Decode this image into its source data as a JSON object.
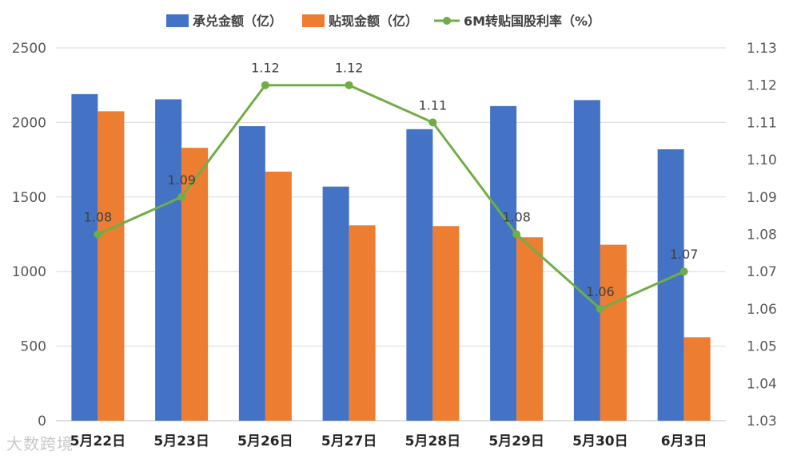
{
  "chart_data": {
    "type": "bar",
    "categories": [
      "5月22日",
      "5月23日",
      "5月26日",
      "5月27日",
      "5月28日",
      "5月29日",
      "5月30日",
      "6月3日"
    ],
    "series": [
      {
        "name": "承兑金额（亿）",
        "kind": "bar",
        "axis": "left",
        "color": "#4472c4",
        "values": [
          2190,
          2155,
          1975,
          1570,
          1955,
          2110,
          2150,
          1820
        ]
      },
      {
        "name": "贴现金额（亿）",
        "kind": "bar",
        "axis": "left",
        "color": "#ed7d31",
        "values": [
          2075,
          1830,
          1670,
          1310,
          1305,
          1230,
          1180,
          560
        ]
      },
      {
        "name": "6M转贴国股利率（%）",
        "kind": "line",
        "axis": "right",
        "color": "#70ad47",
        "values": [
          1.08,
          1.09,
          1.12,
          1.12,
          1.11,
          1.08,
          1.06,
          1.07
        ],
        "labels": [
          "1.08",
          "1.09",
          "1.12",
          "1.12",
          "1.11",
          "1.08",
          "1.06",
          "1.07"
        ]
      }
    ],
    "y_left": {
      "ylim": [
        0,
        2500
      ],
      "ticks": [
        "0",
        "500",
        "1000",
        "1500",
        "2000",
        "2500"
      ]
    },
    "y_right": {
      "ylim": [
        1.03,
        1.13
      ],
      "ticks": [
        "1.03",
        "1.04",
        "1.05",
        "1.06",
        "1.07",
        "1.08",
        "1.09",
        "1.10",
        "1.11",
        "1.12",
        "1.13"
      ]
    },
    "grid": true,
    "legend_position": "top-center"
  },
  "watermark": "大数跨境"
}
